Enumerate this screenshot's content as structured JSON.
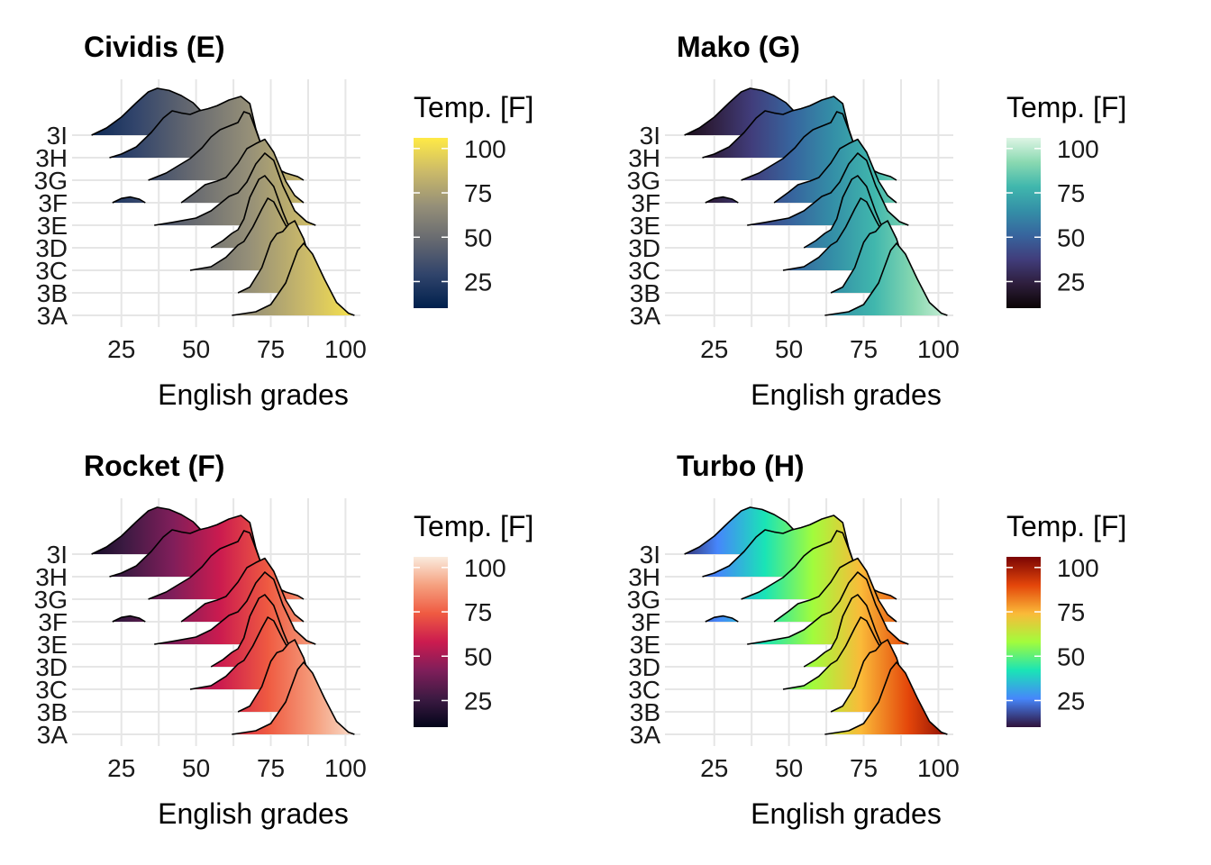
{
  "chart_data": [
    {
      "type": "ridgeline",
      "title": "Cividis (E)",
      "xlabel": "English grades",
      "xlim": [
        10,
        105
      ],
      "xticks": [
        25,
        50,
        75,
        100
      ],
      "categories": [
        "3A",
        "3B",
        "3C",
        "3D",
        "3E",
        "3F",
        "3G",
        "3H",
        "3I"
      ],
      "legend": {
        "title": "Temp. [F]",
        "ticks": [
          25,
          50,
          75,
          100
        ],
        "range": [
          10,
          106
        ],
        "position": "right"
      },
      "palette": [
        "#00204D",
        "#31446B",
        "#666970",
        "#958F78",
        "#CBBA69",
        "#FFEA46"
      ]
    },
    {
      "type": "ridgeline",
      "title": "Mako (G)",
      "xlabel": "English grades",
      "xlim": [
        10,
        105
      ],
      "xticks": [
        25,
        50,
        75,
        100
      ],
      "categories": [
        "3A",
        "3B",
        "3C",
        "3D",
        "3E",
        "3F",
        "3G",
        "3H",
        "3I"
      ],
      "legend": {
        "title": "Temp. [F]",
        "ticks": [
          25,
          50,
          75,
          100
        ],
        "range": [
          10,
          106
        ],
        "position": "right"
      },
      "palette": [
        "#0B0405",
        "#2E1E3C",
        "#413D7B",
        "#37659E",
        "#348FA7",
        "#40B7AD",
        "#8AD9B1",
        "#DEF5E5"
      ]
    },
    {
      "type": "ridgeline",
      "title": "Rocket (F)",
      "xlabel": "English grades",
      "xlim": [
        10,
        105
      ],
      "xticks": [
        25,
        50,
        75,
        100
      ],
      "categories": [
        "3A",
        "3B",
        "3C",
        "3D",
        "3E",
        "3F",
        "3G",
        "3H",
        "3I"
      ],
      "legend": {
        "title": "Temp. [F]",
        "ticks": [
          25,
          50,
          75,
          100
        ],
        "range": [
          10,
          106
        ],
        "position": "right"
      },
      "palette": [
        "#03051A",
        "#3C1A42",
        "#7F1E5A",
        "#CB1B4F",
        "#EF5A41",
        "#F5A07F",
        "#FAEBDD"
      ]
    },
    {
      "type": "ridgeline",
      "title": "Turbo (H)",
      "xlabel": "English grades",
      "xlim": [
        10,
        105
      ],
      "xticks": [
        25,
        50,
        75,
        100
      ],
      "categories": [
        "3A",
        "3B",
        "3C",
        "3D",
        "3E",
        "3F",
        "3G",
        "3H",
        "3I"
      ],
      "legend": {
        "title": "Temp. [F]",
        "ticks": [
          25,
          50,
          75,
          100
        ],
        "range": [
          10,
          106
        ],
        "position": "right"
      },
      "palette": [
        "#30123B",
        "#4686FB",
        "#1AE4B6",
        "#A2FC3C",
        "#FABA39",
        "#E4460A",
        "#7A0403"
      ]
    }
  ],
  "ridges": [
    {
      "name": "3A",
      "points": [
        [
          62,
          0
        ],
        [
          70,
          0.05
        ],
        [
          75,
          0.15
        ],
        [
          80,
          0.45
        ],
        [
          84,
          0.9
        ],
        [
          86,
          1.0
        ],
        [
          89,
          0.85
        ],
        [
          93,
          0.5
        ],
        [
          97,
          0.18
        ],
        [
          101,
          0.03
        ],
        [
          103,
          0
        ]
      ]
    },
    {
      "name": "3B",
      "points": [
        [
          64,
          0
        ],
        [
          68,
          0.08
        ],
        [
          72,
          0.35
        ],
        [
          75,
          0.7
        ],
        [
          77,
          0.82
        ],
        [
          79,
          0.85
        ],
        [
          81,
          0.95
        ],
        [
          83,
          1.0
        ],
        [
          86,
          0.75
        ],
        [
          89,
          0.35
        ],
        [
          91,
          0.1
        ],
        [
          93,
          0
        ]
      ]
    },
    {
      "name": "3C",
      "points": [
        [
          48,
          0
        ],
        [
          55,
          0.05
        ],
        [
          60,
          0.18
        ],
        [
          64,
          0.35
        ],
        [
          66,
          0.4
        ],
        [
          69,
          0.6
        ],
        [
          72,
          0.85
        ],
        [
          74,
          1.0
        ],
        [
          76,
          0.95
        ],
        [
          79,
          0.7
        ],
        [
          81,
          0.55
        ],
        [
          83,
          0.35
        ],
        [
          87,
          0.1
        ],
        [
          90,
          0
        ]
      ]
    },
    {
      "name": "3D",
      "points": [
        [
          55,
          0
        ],
        [
          59,
          0.1
        ],
        [
          62,
          0.2
        ],
        [
          64,
          0.25
        ],
        [
          66,
          0.4
        ],
        [
          68,
          0.7
        ],
        [
          71,
          0.95
        ],
        [
          73,
          1.0
        ],
        [
          76,
          0.85
        ],
        [
          79,
          0.5
        ],
        [
          82,
          0.2
        ],
        [
          85,
          0.05
        ],
        [
          87,
          0
        ]
      ]
    },
    {
      "name": "3E",
      "points": [
        [
          36,
          0
        ],
        [
          42,
          0.04
        ],
        [
          50,
          0.1
        ],
        [
          55,
          0.2
        ],
        [
          58,
          0.3
        ],
        [
          61,
          0.4
        ],
        [
          64,
          0.45
        ],
        [
          67,
          0.6
        ],
        [
          70,
          0.85
        ],
        [
          73,
          1.0
        ],
        [
          76,
          0.9
        ],
        [
          79,
          0.55
        ],
        [
          83,
          0.2
        ],
        [
          87,
          0.05
        ],
        [
          90,
          0
        ]
      ]
    },
    {
      "name": "3F",
      "points": [
        [
          22,
          0
        ],
        [
          25,
          0.06
        ],
        [
          28,
          0.08
        ],
        [
          31,
          0.05
        ],
        [
          33,
          0
        ],
        [
          45,
          0
        ],
        [
          50,
          0.15
        ],
        [
          53,
          0.25
        ],
        [
          57,
          0.3
        ],
        [
          60,
          0.35
        ],
        [
          64,
          0.55
        ],
        [
          67,
          0.75
        ],
        [
          70,
          0.82
        ],
        [
          73,
          0.88
        ],
        [
          76,
          0.7
        ],
        [
          80,
          0.3
        ],
        [
          83,
          0.1
        ],
        [
          86,
          0
        ]
      ]
    },
    {
      "name": "3G",
      "points": [
        [
          34,
          0
        ],
        [
          40,
          0.1
        ],
        [
          44,
          0.2
        ],
        [
          48,
          0.3
        ],
        [
          52,
          0.45
        ],
        [
          55,
          0.6
        ],
        [
          58,
          0.7
        ],
        [
          61,
          0.75
        ],
        [
          64,
          0.8
        ],
        [
          66,
          0.95
        ],
        [
          68,
          0.92
        ],
        [
          70,
          0.7
        ],
        [
          73,
          0.35
        ],
        [
          76,
          0.18
        ],
        [
          80,
          0.1
        ],
        [
          84,
          0.05
        ],
        [
          86,
          0
        ]
      ]
    },
    {
      "name": "3H",
      "points": [
        [
          21,
          0
        ],
        [
          25,
          0.05
        ],
        [
          30,
          0.15
        ],
        [
          35,
          0.35
        ],
        [
          39,
          0.55
        ],
        [
          42,
          0.65
        ],
        [
          45,
          0.62
        ],
        [
          48,
          0.6
        ],
        [
          51,
          0.65
        ],
        [
          54,
          0.68
        ],
        [
          57,
          0.72
        ],
        [
          61,
          0.8
        ],
        [
          65,
          0.85
        ],
        [
          68,
          0.75
        ],
        [
          70,
          0.4
        ],
        [
          72,
          0.15
        ],
        [
          74,
          0
        ]
      ]
    },
    {
      "name": "3I",
      "points": [
        [
          15,
          0
        ],
        [
          20,
          0.1
        ],
        [
          25,
          0.25
        ],
        [
          30,
          0.45
        ],
        [
          34,
          0.6
        ],
        [
          37,
          0.65
        ],
        [
          41,
          0.62
        ],
        [
          45,
          0.55
        ],
        [
          49,
          0.45
        ],
        [
          52,
          0.32
        ],
        [
          55,
          0.25
        ],
        [
          59,
          0.16
        ],
        [
          63,
          0.05
        ],
        [
          66,
          0
        ]
      ]
    }
  ]
}
